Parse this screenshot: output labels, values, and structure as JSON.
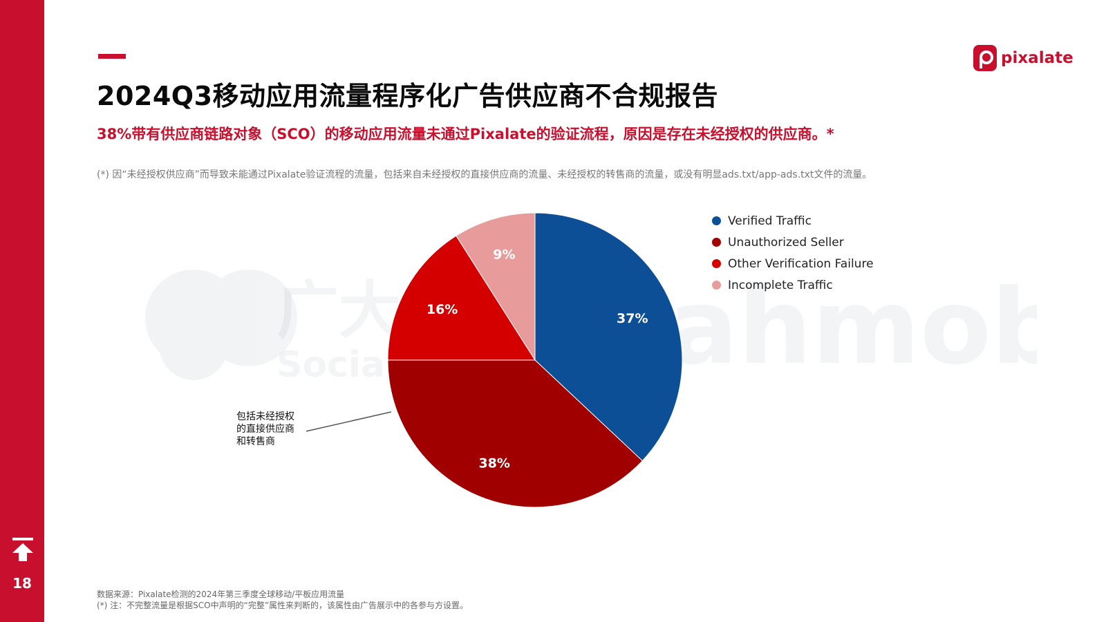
{
  "page": {
    "number": "18",
    "title": "2024Q3移动应用流量程序化广告供应商不合规报告",
    "subtitle": "38%带有供应商链路对象（SCO）的移动应用流量未通过Pixalate的验证流程，原因是存在未经授权的供应商。*",
    "note": "(*) 因“未经授权供应商”而导致未能通过Pixalate验证流程的流量，包括来自未经授权的直接供应商的流量、未经授权的转售商的流量，或没有明显ads.txt/app-ads.txt文件的流量。",
    "logo_text": "pixalate",
    "accent_color": "#c8102e"
  },
  "watermark": {
    "brand1_cn": "广大大",
    "brand1_en": "SocialPeta",
    "brand2": "Yeahmobi"
  },
  "callout": {
    "lines": [
      "包括未经授权",
      "的直接供应商",
      "和转售商"
    ]
  },
  "footer": {
    "source": "数据来源：Pixalate检测的2024年第三季度全球移动/平板应用流量",
    "note": "(*) 注：不完整流量是根据SCO中声明的“完整”属性来判断的，该属性由广告展示中的各参与方设置。"
  },
  "chart_data": {
    "type": "pie",
    "start": "12 o'clock, clockwise",
    "categories": [
      "Verified Traffic",
      "Unauthorized Seller",
      "Other Verification Failure",
      "Incomplete Traffic"
    ],
    "values": [
      37,
      38,
      16,
      9
    ],
    "labels": [
      "37%",
      "38%",
      "16%",
      "9%"
    ],
    "colors": [
      "#0d4f96",
      "#a00000",
      "#d40000",
      "#e89b9b"
    ],
    "legend": "right"
  }
}
